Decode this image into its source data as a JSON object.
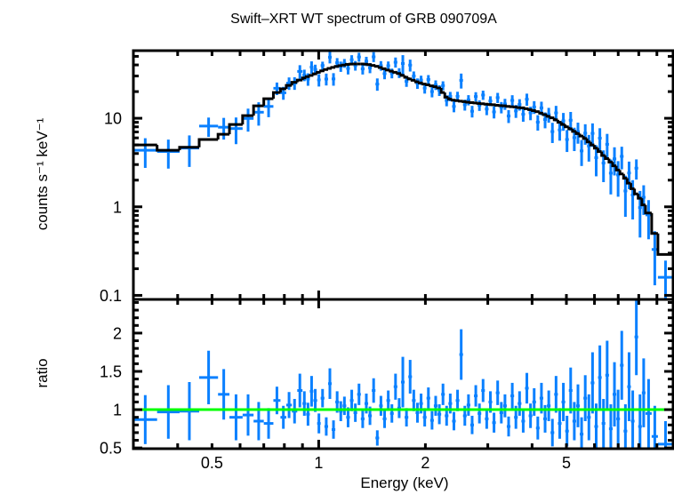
{
  "chart_data": {
    "type": "scatter",
    "title": "Swift–XRT WT spectrum of GRB 090709A",
    "xlabel": "Energy (keV)",
    "xscale": "log",
    "xlim": [
      0.3,
      10
    ],
    "x_ticks": {
      "values": [
        0.5,
        1,
        2,
        5
      ],
      "labels": [
        "0.5",
        "1",
        "2",
        "5"
      ]
    },
    "grid": false,
    "legend": "none",
    "colors": {
      "data": "#0a80ff",
      "model": "#000000",
      "unity_line": "#00ff00",
      "frame": "#000000"
    },
    "bin_columns": [
      "e_lo_keV",
      "e_hi_keV",
      "rate",
      "rate_err",
      "model",
      "ratio",
      "ratio_err"
    ],
    "bins": [
      [
        0.3,
        0.35,
        4.35,
        1.6,
        5.0,
        0.87,
        0.32
      ],
      [
        0.35,
        0.405,
        4.22,
        1.52,
        4.35,
        0.97,
        0.35
      ],
      [
        0.405,
        0.46,
        4.61,
        1.79,
        4.7,
        0.98,
        0.38
      ],
      [
        0.46,
        0.52,
        8.17,
        2.01,
        5.75,
        1.42,
        0.35
      ],
      [
        0.52,
        0.56,
        7.92,
        2.18,
        6.6,
        1.2,
        0.33
      ],
      [
        0.56,
        0.61,
        7.65,
        2.55,
        8.5,
        0.9,
        0.3
      ],
      [
        0.61,
        0.655,
        9.95,
        2.89,
        10.7,
        0.93,
        0.27
      ],
      [
        0.655,
        0.7,
        11.7,
        3.45,
        13.8,
        0.85,
        0.25
      ],
      [
        0.7,
        0.745,
        13.6,
        3.32,
        16.6,
        0.82,
        0.2
      ],
      [
        0.745,
        0.78,
        21.8,
        3.51,
        19.5,
        1.12,
        0.18
      ],
      [
        0.78,
        0.81,
        19.4,
        3.23,
        21.5,
        0.9,
        0.15
      ],
      [
        0.81,
        0.84,
        24.9,
        4.0,
        23.5,
        1.06,
        0.17
      ],
      [
        0.84,
        0.87,
        25.0,
        4.08,
        25.5,
        0.98,
        0.16
      ],
      [
        0.87,
        0.9,
        33.8,
        5.94,
        27.0,
        1.25,
        0.22
      ],
      [
        0.9,
        0.922,
        30.8,
        4.56,
        28.5,
        1.08,
        0.16
      ],
      [
        0.922,
        0.944,
        27.7,
        4.43,
        29.5,
        0.94,
        0.15
      ],
      [
        0.944,
        0.966,
        37.8,
        6.1,
        30.5,
        1.24,
        0.2
      ],
      [
        0.966,
        0.99,
        35.5,
        4.76,
        31.7,
        1.12,
        0.15
      ],
      [
        0.99,
        1.013,
        27.1,
        4.29,
        33.0,
        0.82,
        0.13
      ],
      [
        1.013,
        1.038,
        39.4,
        4.12,
        34.3,
        1.15,
        0.12
      ],
      [
        1.038,
        1.063,
        27.7,
        4.26,
        35.5,
        0.78,
        0.12
      ],
      [
        1.063,
        1.088,
        48.9,
        7.3,
        36.5,
        1.34,
        0.2
      ],
      [
        1.088,
        1.114,
        27.8,
        4.5,
        37.5,
        0.74,
        0.12
      ],
      [
        1.114,
        1.141,
        42.4,
        5.39,
        38.5,
        1.1,
        0.14
      ],
      [
        1.141,
        1.168,
        38.5,
        5.11,
        39.3,
        0.98,
        0.13
      ],
      [
        1.168,
        1.196,
        41.9,
        4.79,
        39.9,
        1.05,
        0.12
      ],
      [
        1.196,
        1.225,
        36.5,
        5.27,
        40.5,
        0.9,
        0.13
      ],
      [
        1.225,
        1.254,
        45.8,
        5.73,
        40.9,
        1.12,
        0.14
      ],
      [
        1.254,
        1.284,
        39.4,
        4.92,
        41.0,
        0.96,
        0.12
      ],
      [
        1.284,
        1.315,
        49.2,
        5.74,
        41.0,
        1.2,
        0.14
      ],
      [
        1.315,
        1.347,
        36.1,
        4.92,
        41.0,
        0.88,
        0.12
      ],
      [
        1.347,
        1.379,
        44.1,
        5.3,
        40.8,
        1.08,
        0.13
      ],
      [
        1.379,
        1.412,
        37.1,
        4.84,
        40.3,
        0.92,
        0.12
      ],
      [
        1.412,
        1.446,
        49.4,
        6.32,
        39.5,
        1.25,
        0.16
      ],
      [
        1.446,
        1.481,
        24.3,
        3.86,
        38.6,
        0.63,
        0.1
      ],
      [
        1.481,
        1.516,
        39.3,
        4.86,
        37.4,
        1.05,
        0.13
      ],
      [
        1.516,
        1.553,
        31.9,
        4.34,
        36.2,
        0.88,
        0.12
      ],
      [
        1.553,
        1.59,
        39.2,
        4.55,
        35.0,
        1.12,
        0.13
      ],
      [
        1.59,
        1.628,
        32.3,
        4.08,
        34.0,
        0.95,
        0.12
      ],
      [
        1.628,
        1.667,
        42.9,
        5.61,
        33.0,
        1.3,
        0.17
      ],
      [
        1.667,
        1.707,
        32.6,
        4.16,
        32.0,
        1.02,
        0.13
      ],
      [
        1.707,
        1.748,
        41.5,
        10.1,
        30.5,
        1.36,
        0.33
      ],
      [
        1.748,
        1.79,
        26.1,
        3.48,
        29.0,
        0.9,
        0.12
      ],
      [
        1.79,
        1.833,
        39.8,
        6.12,
        27.8,
        1.43,
        0.22
      ],
      [
        1.833,
        1.877,
        30.0,
        3.75,
        26.8,
        1.12,
        0.14
      ],
      [
        1.877,
        1.922,
        24.8,
        3.35,
        25.8,
        0.96,
        0.13
      ],
      [
        1.922,
        1.968,
        27.0,
        3.25,
        25.0,
        1.08,
        0.13
      ],
      [
        1.968,
        2.015,
        21.9,
        2.92,
        24.3,
        0.9,
        0.12
      ],
      [
        2.015,
        2.064,
        27.4,
        3.33,
        23.8,
        1.15,
        0.14
      ],
      [
        2.064,
        2.113,
        20.0,
        2.78,
        23.2,
        0.86,
        0.12
      ],
      [
        2.113,
        2.164,
        23.8,
        2.95,
        22.7,
        1.05,
        0.13
      ],
      [
        2.164,
        2.216,
        20.7,
        2.86,
        22.0,
        0.94,
        0.13
      ],
      [
        2.216,
        2.269,
        23.4,
        2.73,
        19.5,
        1.2,
        0.14
      ],
      [
        2.269,
        2.323,
        15.9,
        2.25,
        17.3,
        0.92,
        0.13
      ],
      [
        2.323,
        2.379,
        17.7,
        2.13,
        16.4,
        1.08,
        0.13
      ],
      [
        2.379,
        2.436,
        13.6,
        1.92,
        16.0,
        0.85,
        0.12
      ],
      [
        2.436,
        2.494,
        17.7,
        2.21,
        15.8,
        1.12,
        0.14
      ],
      [
        2.494,
        2.554,
        26.8,
        5.15,
        15.6,
        1.72,
        0.33
      ],
      [
        2.554,
        2.615,
        14.2,
        2.0,
        15.4,
        0.92,
        0.13
      ],
      [
        2.615,
        2.678,
        16.1,
        2.13,
        15.2,
        1.06,
        0.14
      ],
      [
        2.678,
        2.742,
        12.0,
        1.8,
        15.0,
        0.8,
        0.12
      ],
      [
        2.742,
        2.808,
        17.6,
        2.09,
        14.9,
        1.18,
        0.14
      ],
      [
        2.808,
        2.875,
        14.0,
        1.91,
        14.7,
        0.95,
        0.13
      ],
      [
        2.875,
        2.944,
        18.3,
        2.19,
        14.6,
        1.25,
        0.15
      ],
      [
        2.944,
        3.015,
        12.7,
        1.87,
        14.4,
        0.88,
        0.13
      ],
      [
        3.015,
        3.087,
        15.7,
        2.0,
        14.3,
        1.1,
        0.14
      ],
      [
        3.087,
        3.161,
        11.8,
        1.85,
        14.2,
        0.83,
        0.13
      ],
      [
        3.161,
        3.237,
        17.1,
        2.24,
        14.0,
        1.22,
        0.16
      ],
      [
        3.237,
        3.315,
        13.3,
        1.95,
        13.9,
        0.96,
        0.14
      ],
      [
        3.315,
        3.394,
        14.5,
        2.07,
        13.8,
        1.05,
        0.15
      ],
      [
        3.394,
        3.476,
        10.6,
        1.77,
        13.6,
        0.78,
        0.13
      ],
      [
        3.476,
        3.559,
        15.9,
        2.3,
        13.5,
        1.18,
        0.17
      ],
      [
        3.559,
        3.644,
        12.1,
        2.01,
        13.4,
        0.9,
        0.15
      ],
      [
        3.644,
        3.732,
        14.3,
        2.11,
        13.2,
        1.08,
        0.16
      ],
      [
        3.732,
        3.821,
        11.1,
        1.97,
        13.1,
        0.85,
        0.15
      ],
      [
        3.821,
        3.913,
        16.4,
        2.56,
        12.8,
        1.28,
        0.2
      ],
      [
        3.913,
        4.007,
        11.5,
        2.0,
        12.5,
        0.92,
        0.16
      ],
      [
        4.007,
        4.103,
        13.4,
        2.2,
        12.2,
        1.1,
        0.18
      ],
      [
        4.103,
        4.201,
        9.04,
        1.79,
        11.9,
        0.76,
        0.15
      ],
      [
        4.201,
        4.302,
        13.1,
        2.28,
        11.4,
        1.15,
        0.2
      ],
      [
        4.302,
        4.405,
        9.68,
        1.98,
        11.0,
        0.88,
        0.18
      ],
      [
        4.405,
        4.511,
        11.0,
        2.1,
        10.5,
        1.05,
        0.2
      ],
      [
        4.511,
        4.619,
        7.07,
        1.82,
        10.1,
        0.7,
        0.18
      ],
      [
        4.619,
        4.73,
        11.5,
        2.3,
        9.6,
        1.2,
        0.24
      ],
      [
        4.73,
        4.844,
        7.38,
        1.8,
        9.0,
        0.82,
        0.2
      ],
      [
        4.844,
        4.96,
        9.35,
        2.13,
        8.5,
        1.1,
        0.25
      ],
      [
        4.96,
        5.079,
        5.76,
        1.6,
        8.0,
        0.72,
        0.2
      ],
      [
        5.079,
        5.201,
        9.5,
        2.28,
        7.6,
        1.25,
        0.3
      ],
      [
        5.201,
        5.326,
        6.04,
        1.78,
        7.1,
        0.85,
        0.25
      ],
      [
        5.326,
        5.453,
        7.04,
        1.88,
        6.7,
        1.05,
        0.28
      ],
      [
        5.453,
        5.584,
        4.28,
        1.39,
        6.3,
        0.68,
        0.22
      ],
      [
        5.584,
        5.718,
        6.79,
        1.77,
        5.9,
        1.15,
        0.3
      ],
      [
        5.718,
        5.855,
        4.86,
        1.62,
        5.4,
        0.9,
        0.3
      ],
      [
        5.855,
        5.996,
        6.75,
        2.0,
        5.0,
        1.35,
        0.4
      ],
      [
        5.996,
        6.14,
        3.59,
        1.38,
        4.6,
        0.78,
        0.3
      ],
      [
        6.14,
        6.287,
        5.96,
        1.76,
        4.2,
        1.42,
        0.42
      ],
      [
        6.287,
        6.438,
        3.12,
        1.22,
        3.8,
        0.82,
        0.32
      ],
      [
        6.438,
        6.593,
        5.08,
        1.58,
        3.5,
        1.45,
        0.45
      ],
      [
        6.593,
        6.751,
        2.4,
        1.02,
        3.2,
        0.75,
        0.32
      ],
      [
        6.751,
        6.913,
        3.48,
        1.22,
        2.9,
        1.2,
        0.42
      ],
      [
        6.913,
        7.079,
        2.29,
        0.99,
        2.6,
        0.88,
        0.38
      ],
      [
        7.079,
        7.249,
        3.71,
        1.06,
        2.35,
        1.58,
        0.45
      ],
      [
        7.249,
        7.423,
        1.51,
        0.74,
        2.1,
        0.72,
        0.35
      ],
      [
        7.423,
        7.601,
        2.41,
        0.83,
        1.85,
        1.3,
        0.45
      ],
      [
        7.601,
        7.783,
        1.36,
        0.64,
        1.6,
        0.85,
        0.4
      ],
      [
        7.783,
        7.97,
        2.73,
        0.7,
        1.4,
        1.95,
        0.5
      ],
      [
        7.97,
        8.162,
        0.98,
        0.53,
        1.25,
        0.78,
        0.42
      ],
      [
        8.162,
        8.358,
        1.28,
        0.47,
        1.05,
        1.22,
        0.45
      ],
      [
        8.358,
        8.7,
        0.81,
        0.38,
        0.85,
        0.95,
        0.45
      ],
      [
        8.7,
        9.06,
        0.33,
        0.2,
        0.5,
        0.65,
        0.4
      ],
      [
        9.06,
        10.0,
        0.16,
        0.087,
        0.29,
        0.55,
        0.3
      ]
    ],
    "panels": [
      {
        "name": "spectrum",
        "ylabel": "counts s⁻¹ keV⁻¹",
        "yscale": "log",
        "ylim": [
          0.09,
          58
        ],
        "y_ticks": {
          "values": [
            0.1,
            1,
            10
          ],
          "labels": [
            "0.1",
            "1",
            "10"
          ]
        },
        "series": [
          {
            "name": "data",
            "style": "error-crosses",
            "value_column": "rate",
            "error_column": "rate_err"
          },
          {
            "name": "model",
            "style": "step-histogram",
            "value_column": "model"
          }
        ]
      },
      {
        "name": "ratio",
        "ylabel": "ratio",
        "yscale": "linear",
        "ylim": [
          0.49,
          2.44
        ],
        "y_ticks": {
          "values": [
            0.5,
            1,
            1.5,
            2
          ],
          "labels": [
            "0.5",
            "1",
            "1.5",
            "2"
          ]
        },
        "reference_line": 1,
        "series": [
          {
            "name": "data/model",
            "style": "error-crosses",
            "value_column": "ratio",
            "error_column": "ratio_err"
          }
        ]
      }
    ]
  }
}
